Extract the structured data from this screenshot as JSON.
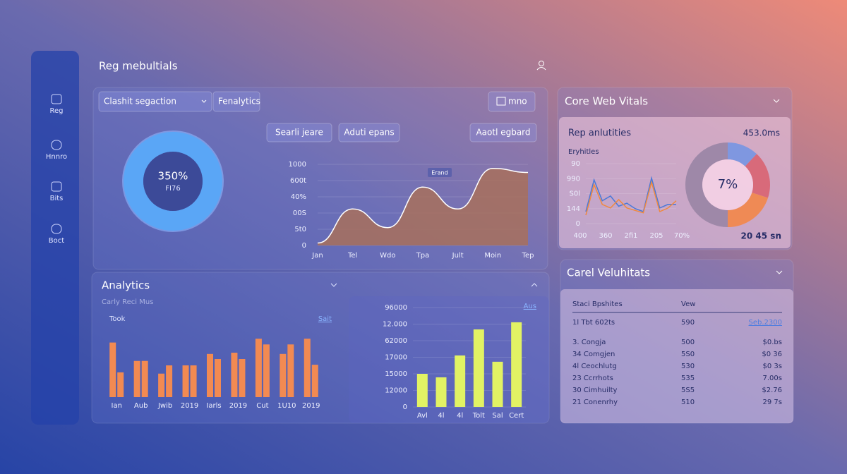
{
  "header": {
    "title": "Reg mebultials"
  },
  "sidebar": {
    "items": [
      "Reg",
      "Hnnro",
      "Bits",
      "Boct"
    ]
  },
  "main_panel": {
    "dropdown": "Clashit segaction",
    "tab": "Fenalytics",
    "badge": "mno",
    "buttons": [
      "Searli jeare",
      "Aduti epans",
      "Aaotl egbard"
    ],
    "donut_label": "350%",
    "donut_sublabel": "FI76",
    "area_chart": {
      "type": "area",
      "annotation": "Erand",
      "categories": [
        "Jan",
        "Tel",
        "Wdo",
        "Tpa",
        "Jult",
        "Moin",
        "Tep"
      ],
      "values": [
        3,
        45,
        22,
        72,
        45,
        95,
        90
      ],
      "color": "#a8705c",
      "ylim": [
        0,
        100
      ],
      "yticks": [
        0,
        {
          "value": 20,
          "label": "5t0"
        },
        {
          "value": 40,
          "label": "00S"
        },
        {
          "value": 60,
          "label": "40%"
        },
        {
          "value": 80,
          "label": "600t"
        },
        {
          "value": 100,
          "label": "1000"
        }
      ],
      "grid": true
    }
  },
  "analytics_panel": {
    "title": "Analytics",
    "subtitle": "Carly Reci Mus",
    "label": "Took",
    "link": "Sait",
    "link2": "Aus",
    "bar_chart": {
      "type": "bar",
      "categories": [
        "Ian",
        "Aub",
        "Jwib",
        "2019",
        "Iarls",
        "2019",
        "Cut",
        "1U10",
        "2019"
      ],
      "series": [
        {
          "values": [
            86,
            57,
            37,
            50,
            68,
            70,
            92,
            68,
            92
          ],
          "color": "#f28a52"
        },
        {
          "values": [
            39,
            57,
            50,
            50,
            60,
            60,
            83,
            83,
            51
          ],
          "color": "#f28a52"
        }
      ],
      "ylim": [
        0,
        100
      ]
    },
    "bar_chart_2": {
      "type": "bar",
      "categories": [
        "Avl",
        "4l",
        "4l",
        "Tolt",
        "Sal",
        "Cert"
      ],
      "values": [
        200,
        179,
        311,
        468,
        273,
        511
      ],
      "color": "#e2f264",
      "ylim": [
        0,
        600
      ],
      "yticks": [
        0,
        {
          "value": 100,
          "label": "12000"
        },
        {
          "value": 200,
          "label": "15000"
        },
        {
          "value": 300,
          "label": "17000"
        },
        {
          "value": 400,
          "label": "62000"
        },
        {
          "value": 500,
          "label": "12.000"
        },
        {
          "value": 600,
          "label": "96000"
        }
      ],
      "grid": true
    }
  },
  "vitals_panel": {
    "title": "Core Web Vitals",
    "card_title": "Rep anlutities",
    "metric": "453.0ms",
    "chart_label": "Eryhitles",
    "footer": "20 45 sn",
    "line_chart": {
      "type": "line",
      "xlabels": [
        "400",
        "360",
        "2fi1",
        "205",
        "70%"
      ],
      "series": [
        {
          "values": [
            20,
            73,
            38,
            46,
            29,
            34,
            25,
            20,
            76,
            26,
            32,
            32
          ],
          "color": "#4a78d8"
        },
        {
          "values": [
            14,
            65,
            32,
            26,
            40,
            26,
            22,
            18,
            69,
            20,
            26,
            38
          ],
          "color": "#f0893e"
        }
      ],
      "ylim": [
        0,
        100
      ],
      "yticks": [
        0,
        {
          "value": 25,
          "label": "144"
        },
        {
          "value": 50,
          "label": "S0l"
        },
        {
          "value": 75,
          "label": "990"
        },
        {
          "value": 100,
          "label": "90"
        }
      ],
      "grid": true
    },
    "pie_chart": {
      "type": "pie",
      "center_label": "7%",
      "values": [
        12,
        18,
        20,
        50
      ],
      "colors": [
        "#7f97e0",
        "#d86a7a",
        "#ef8a55",
        "#9e88a8"
      ]
    }
  },
  "table_panel": {
    "title": "Carel Veluhitats",
    "headers": [
      "Staci Bpshites",
      "Vew"
    ],
    "rows": [
      [
        "1l  Tbt 602ts",
        "590",
        "Seb.2300"
      ],
      [
        "3.  Congja",
        "500",
        "$0.bs"
      ],
      [
        "34  Comgjen",
        "5S0",
        "$0 36"
      ],
      [
        "4l  Ceochlutg",
        "530",
        "$0 3s"
      ],
      [
        "23  Ccrrhots",
        "535",
        "7.00s"
      ],
      [
        "30  Cimhuilty",
        "5S5",
        "$2.76"
      ],
      [
        "21  Conenrhy",
        "510",
        "29 7s"
      ]
    ]
  }
}
